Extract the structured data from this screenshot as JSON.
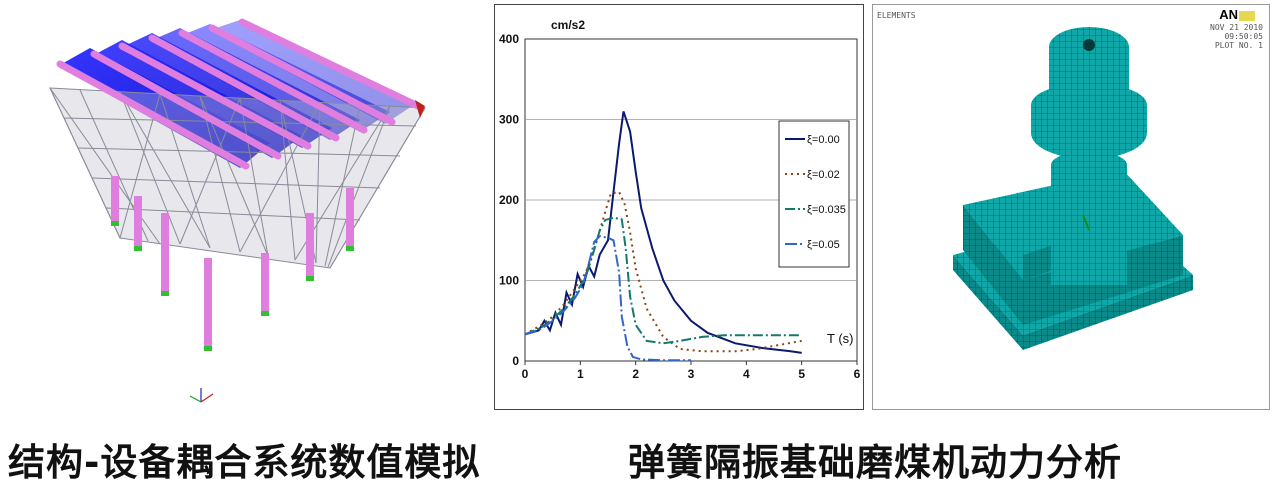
{
  "captions": {
    "left": "结构-设备耦合系统数值模拟",
    "right": "弹簧隔振基础磨煤机动力分析"
  },
  "ansys": {
    "label": "ELEMENTS",
    "logo": "AN",
    "date": "NOV 21 2010",
    "time": "09:50:05",
    "plot_no": "PLOT NO.   1"
  },
  "colors": {
    "roof_blue": "#1a1aff",
    "member_pink": "#e07ee0",
    "truss_gray": "#8a8a9a",
    "mesh_cyan": "#0fa7a7",
    "mesh_line": "#063a3a"
  },
  "chart_data": {
    "type": "line",
    "ylabel": "cm/s2",
    "xlabel": "T (s)",
    "xlim": [
      0,
      6
    ],
    "ylim": [
      0,
      400
    ],
    "x_ticks": [
      0,
      1,
      2,
      3,
      4,
      5,
      6
    ],
    "y_ticks": [
      0,
      100,
      200,
      300,
      400
    ],
    "grid": true,
    "legend_position": "top-right",
    "series": [
      {
        "name": "ξ=0.00",
        "color": "#0a1a6e",
        "dash": "solid",
        "points": [
          [
            0.0,
            33
          ],
          [
            0.25,
            38
          ],
          [
            0.35,
            50
          ],
          [
            0.45,
            38
          ],
          [
            0.55,
            60
          ],
          [
            0.65,
            45
          ],
          [
            0.75,
            85
          ],
          [
            0.85,
            70
          ],
          [
            0.95,
            108
          ],
          [
            1.05,
            92
          ],
          [
            1.15,
            118
          ],
          [
            1.25,
            105
          ],
          [
            1.35,
            132
          ],
          [
            1.5,
            150
          ],
          [
            1.6,
            210
          ],
          [
            1.7,
            270
          ],
          [
            1.78,
            310
          ],
          [
            1.9,
            285
          ],
          [
            2.0,
            235
          ],
          [
            2.1,
            190
          ],
          [
            2.3,
            140
          ],
          [
            2.5,
            100
          ],
          [
            2.7,
            75
          ],
          [
            3.0,
            50
          ],
          [
            3.3,
            35
          ],
          [
            3.8,
            22
          ],
          [
            4.3,
            16
          ],
          [
            4.8,
            12
          ],
          [
            5.0,
            10
          ]
        ]
      },
      {
        "name": "ξ=0.02",
        "color": "#8b4513",
        "dash": "2,4",
        "points": [
          [
            0.0,
            33
          ],
          [
            0.3,
            45
          ],
          [
            0.5,
            55
          ],
          [
            0.7,
            70
          ],
          [
            0.9,
            90
          ],
          [
            1.1,
            110
          ],
          [
            1.3,
            150
          ],
          [
            1.45,
            185
          ],
          [
            1.55,
            208
          ],
          [
            1.7,
            210
          ],
          [
            1.8,
            195
          ],
          [
            1.9,
            160
          ],
          [
            2.0,
            115
          ],
          [
            2.2,
            65
          ],
          [
            2.5,
            30
          ],
          [
            2.8,
            15
          ],
          [
            3.2,
            12
          ],
          [
            3.8,
            12
          ],
          [
            4.2,
            15
          ],
          [
            4.6,
            20
          ],
          [
            5.0,
            25
          ]
        ]
      },
      {
        "name": "ξ=0.035",
        "color": "#127a6a",
        "dash": "10,3,2,3",
        "points": [
          [
            0.0,
            33
          ],
          [
            0.3,
            42
          ],
          [
            0.5,
            52
          ],
          [
            0.7,
            65
          ],
          [
            0.9,
            82
          ],
          [
            1.1,
            105
          ],
          [
            1.25,
            138
          ],
          [
            1.35,
            162
          ],
          [
            1.45,
            175
          ],
          [
            1.6,
            178
          ],
          [
            1.75,
            176
          ],
          [
            1.82,
            140
          ],
          [
            1.9,
            80
          ],
          [
            2.0,
            45
          ],
          [
            2.2,
            25
          ],
          [
            2.5,
            22
          ],
          [
            2.8,
            25
          ],
          [
            3.2,
            30
          ],
          [
            3.6,
            32
          ],
          [
            4.2,
            32
          ],
          [
            5.0,
            32
          ]
        ]
      },
      {
        "name": "ξ=0.05",
        "color": "#3366cc",
        "dash": "12,3,2,3",
        "points": [
          [
            0.0,
            33
          ],
          [
            0.3,
            40
          ],
          [
            0.5,
            50
          ],
          [
            0.7,
            62
          ],
          [
            0.9,
            78
          ],
          [
            1.05,
            95
          ],
          [
            1.15,
            120
          ],
          [
            1.25,
            148
          ],
          [
            1.35,
            155
          ],
          [
            1.5,
            153
          ],
          [
            1.6,
            150
          ],
          [
            1.7,
            110
          ],
          [
            1.75,
            55
          ],
          [
            1.85,
            18
          ],
          [
            1.95,
            5
          ],
          [
            2.1,
            2
          ],
          [
            2.5,
            1
          ],
          [
            3.0,
            1
          ]
        ]
      }
    ]
  }
}
